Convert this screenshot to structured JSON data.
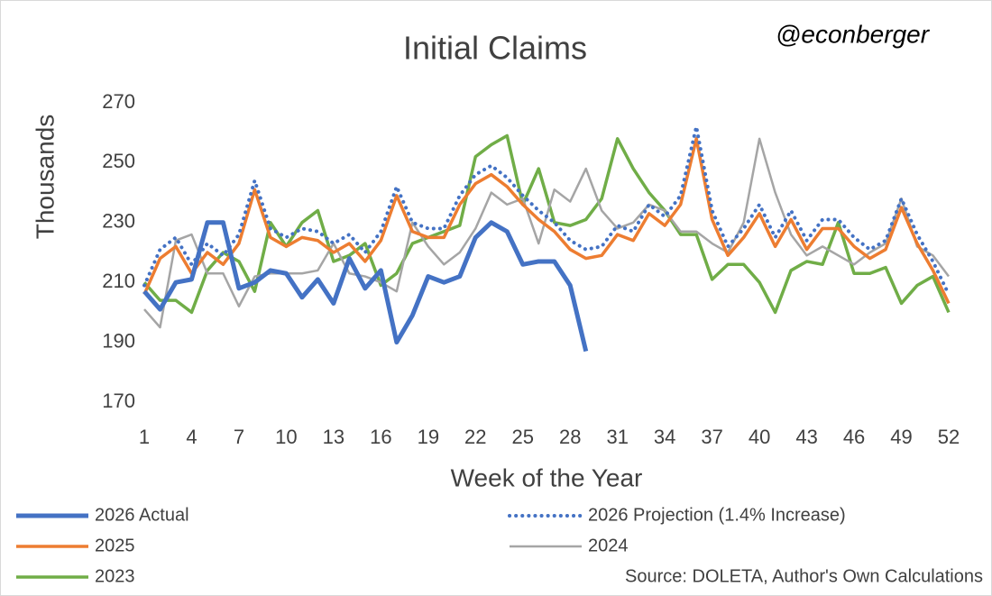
{
  "chart_data": {
    "type": "line",
    "title": "Initial Claims",
    "annotation": "@econberger",
    "source": "Source: DOLETA, Author's Own Calculations",
    "x_label": "Week of the Year",
    "y_label": "Thousands",
    "x": [
      1,
      2,
      3,
      4,
      5,
      6,
      7,
      8,
      9,
      10,
      11,
      12,
      13,
      14,
      15,
      16,
      17,
      18,
      19,
      20,
      21,
      22,
      23,
      24,
      25,
      26,
      27,
      28,
      29,
      30,
      31,
      32,
      33,
      34,
      35,
      36,
      37,
      38,
      39,
      40,
      41,
      42,
      43,
      44,
      45,
      46,
      47,
      48,
      49,
      50,
      51,
      52
    ],
    "xlim": [
      1,
      52
    ],
    "xticks": [
      1,
      4,
      7,
      10,
      13,
      16,
      19,
      22,
      25,
      28,
      31,
      34,
      37,
      40,
      43,
      46,
      49,
      52
    ],
    "ylim": [
      170,
      270
    ],
    "yticks": [
      170,
      190,
      210,
      230,
      250,
      270
    ],
    "grid": false,
    "series": [
      {
        "name": "2026 Actual",
        "color": "#4472c4",
        "style": "solid",
        "values": [
          207,
          201,
          210,
          211,
          230,
          230,
          208,
          210,
          214,
          213,
          205,
          211,
          203,
          218,
          208,
          214,
          190,
          199,
          212,
          210,
          212,
          225,
          230,
          227,
          216,
          217,
          217,
          209,
          187,
          null,
          null,
          null,
          null,
          null,
          null,
          null,
          null,
          null,
          null,
          null,
          null,
          null,
          null,
          null,
          null,
          null,
          null,
          null,
          null,
          null,
          null,
          null
        ]
      },
      {
        "name": "2026 Projection (1.4% Increase)",
        "color": "#4472c4",
        "style": "dotted",
        "values": [
          209,
          221,
          225,
          216,
          223,
          219,
          226,
          244,
          228,
          225,
          228,
          227,
          223,
          226,
          220,
          227,
          242,
          230,
          228,
          228,
          239,
          246,
          249,
          245,
          239,
          234,
          230,
          224,
          221,
          222,
          229,
          227,
          236,
          232,
          239,
          262,
          234,
          222,
          228,
          236,
          225,
          234,
          224,
          231,
          231,
          225,
          221,
          224,
          238,
          226,
          217,
          206
        ]
      },
      {
        "name": "2025",
        "color": "#ed7d31",
        "style": "solid",
        "values": [
          206,
          218,
          222,
          213,
          220,
          216,
          223,
          241,
          225,
          222,
          225,
          224,
          220,
          223,
          217,
          224,
          239,
          227,
          225,
          225,
          236,
          243,
          246,
          242,
          236,
          231,
          227,
          221,
          218,
          219,
          226,
          224,
          233,
          229,
          236,
          258,
          231,
          219,
          225,
          233,
          222,
          231,
          221,
          228,
          228,
          222,
          218,
          221,
          235,
          223,
          214,
          203
        ]
      },
      {
        "name": "2024",
        "color": "#a5a5a5",
        "style": "solid",
        "values": [
          201,
          195,
          224,
          226,
          213,
          213,
          202,
          212,
          213,
          213,
          213,
          214,
          223,
          213,
          212,
          210,
          207,
          230,
          222,
          216,
          220,
          228,
          240,
          236,
          238,
          223,
          241,
          237,
          248,
          234,
          228,
          230,
          236,
          234,
          227,
          227,
          223,
          220,
          230,
          258,
          240,
          226,
          219,
          222,
          219,
          216,
          220,
          223,
          238,
          222,
          219,
          212
        ]
      },
      {
        "name": "2023",
        "color": "#70ad47",
        "style": "solid",
        "values": [
          210,
          204,
          204,
          200,
          214,
          220,
          217,
          207,
          230,
          222,
          230,
          234,
          217,
          219,
          223,
          209,
          213,
          223,
          225,
          227,
          229,
          252,
          256,
          259,
          236,
          248,
          230,
          229,
          231,
          238,
          258,
          248,
          240,
          234,
          226,
          226,
          211,
          216,
          216,
          210,
          200,
          214,
          217,
          216,
          230,
          213,
          213,
          215,
          203,
          209,
          212,
          200
        ]
      }
    ]
  }
}
